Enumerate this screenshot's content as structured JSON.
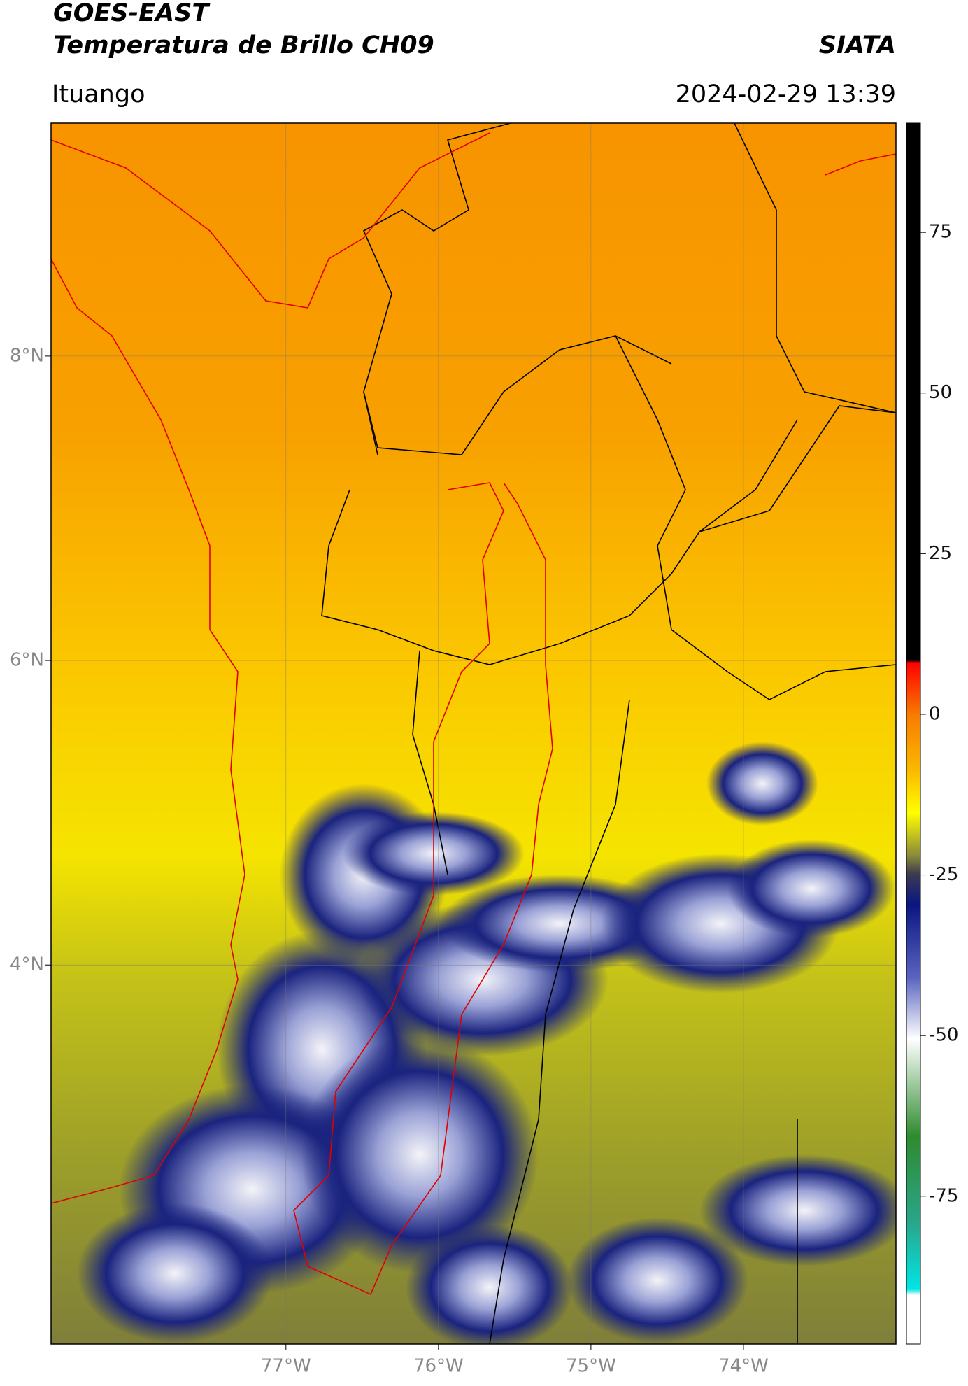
{
  "header": {
    "title": "GOES-EAST",
    "subtitle": "Temperatura de Brillo CH09",
    "organization": "SIATA",
    "region": "Ituango",
    "datetime": "2024-02-29 13:39"
  },
  "map": {
    "xlim": [
      -78.54,
      -73.0
    ],
    "ylim": [
      1.51,
      9.53
    ],
    "xticks": [
      {
        "value": -77,
        "label": "77°W"
      },
      {
        "value": -76,
        "label": "76°W"
      },
      {
        "value": -75,
        "label": "75°W"
      },
      {
        "value": -74,
        "label": "74°W"
      }
    ],
    "yticks": [
      {
        "value": 8,
        "label": "8°N"
      },
      {
        "value": 6,
        "label": "6°N"
      },
      {
        "value": 4,
        "label": "4°N"
      }
    ],
    "grid": true
  },
  "colorbar": {
    "lim": [
      -98,
      92
    ],
    "ticks": [
      75,
      50,
      25,
      0,
      -25,
      -50,
      -75
    ]
  }
}
